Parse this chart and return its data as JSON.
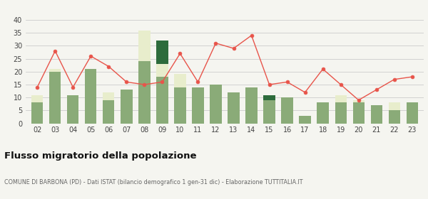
{
  "years": [
    "02",
    "03",
    "04",
    "05",
    "06",
    "07",
    "08",
    "09",
    "10",
    "11",
    "12",
    "13",
    "14",
    "15",
    "16",
    "17",
    "18",
    "19",
    "20",
    "21",
    "22",
    "23"
  ],
  "iscritti_comuni": [
    8,
    20,
    11,
    21,
    9,
    13,
    24,
    18,
    14,
    14,
    15,
    12,
    14,
    9,
    10,
    3,
    8,
    8,
    8,
    7,
    5,
    8
  ],
  "iscritti_estero": [
    3,
    1,
    0,
    0,
    3,
    0,
    12,
    5,
    5,
    0,
    0,
    0,
    0,
    0,
    0,
    0,
    0,
    3,
    1,
    0,
    3,
    0
  ],
  "iscritti_altri": [
    0,
    0,
    0,
    0,
    0,
    0,
    0,
    9,
    0,
    0,
    0,
    0,
    0,
    2,
    0,
    0,
    0,
    0,
    0,
    0,
    0,
    0
  ],
  "cancellati": [
    14,
    28,
    14,
    26,
    22,
    16,
    15,
    16,
    27,
    16,
    31,
    29,
    34,
    15,
    16,
    12,
    21,
    15,
    9,
    13,
    17,
    18
  ],
  "color_comuni": "#8aab78",
  "color_estero": "#e8edcc",
  "color_altri": "#2d6b3c",
  "color_cancellati": "#e8544a",
  "bg_color": "#f5f5f0",
  "grid_color": "#cccccc",
  "ylim": [
    0,
    40
  ],
  "yticks": [
    0,
    5,
    10,
    15,
    20,
    25,
    30,
    35,
    40
  ],
  "title": "Flusso migratorio della popolazione",
  "subtitle": "COMUNE DI BARBONA (PD) - Dati ISTAT (bilancio demografico 1 gen-31 dic) - Elaborazione TUTTITALIA.IT"
}
